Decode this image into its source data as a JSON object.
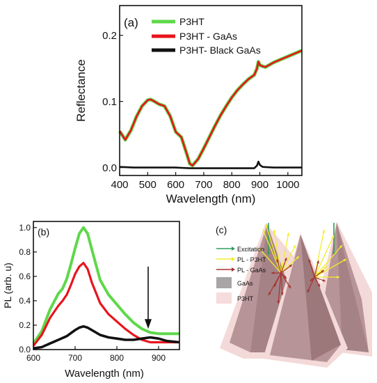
{
  "colors": {
    "p3ht": "#5ed84a",
    "p3ht_gaas": "#e8141c",
    "p3ht_black_gaas": "#111111",
    "excitation": "#2e9e5b",
    "pl_p3ht": "#f2ee2a",
    "pl_gaas": "#a8322e",
    "gaas_fill": "#a9a4a6",
    "p3ht_fill": "#f6dcdc",
    "cone_fill": "#b79497"
  },
  "chart_data": [
    {
      "type": "line",
      "panel_label": "(a)",
      "xlabel": "Wavelength (nm)",
      "ylabel": "Reflectance",
      "xlim": [
        400,
        1050
      ],
      "ylim": [
        -0.012,
        0.245
      ],
      "x_ticks": [
        400,
        500,
        600,
        700,
        800,
        900,
        1000
      ],
      "y_ticks": [
        0.0,
        0.1,
        0.2
      ],
      "x_tick_labels": [
        "400",
        "500",
        "600",
        "700",
        "800",
        "900",
        "1000"
      ],
      "y_tick_labels": [
        "0.0",
        "0.1",
        "0.2"
      ],
      "legend_position": "top-left",
      "series": [
        {
          "name": "P3HT",
          "x": [
            400,
            420,
            440,
            460,
            480,
            500,
            510,
            520,
            540,
            560,
            580,
            600,
            620,
            640,
            650,
            660,
            680,
            700,
            720,
            740,
            760,
            780,
            800,
            820,
            840,
            860,
            880,
            890,
            895,
            900,
            910,
            920,
            950,
            1000,
            1050
          ],
          "y": [
            0.055,
            0.042,
            0.056,
            0.077,
            0.093,
            0.102,
            0.103,
            0.101,
            0.096,
            0.093,
            0.078,
            0.054,
            0.046,
            0.02,
            0.006,
            0.003,
            0.013,
            0.029,
            0.046,
            0.063,
            0.079,
            0.093,
            0.106,
            0.117,
            0.126,
            0.134,
            0.14,
            0.15,
            0.16,
            0.155,
            0.153,
            0.152,
            0.159,
            0.168,
            0.177
          ]
        },
        {
          "name": "P3HT - GaAs",
          "x": [
            400,
            420,
            440,
            460,
            480,
            500,
            510,
            520,
            540,
            560,
            580,
            600,
            620,
            640,
            650,
            660,
            680,
            700,
            720,
            740,
            760,
            780,
            800,
            820,
            840,
            860,
            880,
            890,
            895,
            900,
            910,
            920,
            950,
            1000,
            1050
          ],
          "y": [
            0.055,
            0.042,
            0.056,
            0.077,
            0.093,
            0.102,
            0.103,
            0.101,
            0.096,
            0.093,
            0.078,
            0.054,
            0.046,
            0.02,
            0.006,
            0.003,
            0.013,
            0.029,
            0.046,
            0.063,
            0.079,
            0.093,
            0.106,
            0.117,
            0.126,
            0.134,
            0.14,
            0.15,
            0.16,
            0.155,
            0.153,
            0.152,
            0.159,
            0.168,
            0.177
          ]
        },
        {
          "name": "P3HT- Black GaAs",
          "x": [
            400,
            450,
            500,
            550,
            600,
            650,
            700,
            750,
            800,
            850,
            880,
            890,
            895,
            900,
            910,
            950,
            1000,
            1050
          ],
          "y": [
            0.001,
            0.0,
            0.0,
            0.0,
            0.0,
            -0.001,
            -0.001,
            -0.001,
            -0.001,
            -0.001,
            -0.001,
            0.003,
            0.009,
            0.004,
            0.001,
            0.0,
            0.0,
            0.0
          ]
        }
      ]
    },
    {
      "type": "line",
      "panel_label": "(b)",
      "xlabel": "Wavelength (nm)",
      "ylabel": "PL (arb. u)",
      "xlim": [
        600,
        950
      ],
      "ylim": [
        0.0,
        1.05
      ],
      "x_ticks": [
        600,
        700,
        800,
        900
      ],
      "y_ticks": [
        0.0,
        0.2,
        0.4,
        0.6,
        0.8,
        1.0
      ],
      "x_tick_labels": [
        "600",
        "700",
        "800",
        "900"
      ],
      "y_tick_labels": [
        "0.0",
        "0.2",
        "0.4",
        "0.6",
        "0.8",
        "1.0"
      ],
      "series": [
        {
          "name": "P3HT",
          "x": [
            600,
            620,
            640,
            660,
            670,
            680,
            690,
            700,
            710,
            720,
            730,
            740,
            760,
            780,
            800,
            820,
            840,
            860,
            880,
            900,
            920,
            950
          ],
          "y": [
            0.05,
            0.15,
            0.33,
            0.46,
            0.5,
            0.58,
            0.7,
            0.83,
            0.95,
            1.0,
            0.95,
            0.82,
            0.57,
            0.45,
            0.37,
            0.29,
            0.22,
            0.17,
            0.14,
            0.13,
            0.13,
            0.13
          ]
        },
        {
          "name": "P3HT - GaAs",
          "x": [
            600,
            620,
            640,
            660,
            670,
            680,
            690,
            700,
            710,
            720,
            730,
            740,
            760,
            780,
            800,
            820,
            840,
            860,
            880,
            900,
            920,
            950
          ],
          "y": [
            0.03,
            0.12,
            0.26,
            0.36,
            0.4,
            0.45,
            0.53,
            0.62,
            0.68,
            0.71,
            0.66,
            0.55,
            0.38,
            0.29,
            0.23,
            0.17,
            0.12,
            0.08,
            0.06,
            0.06,
            0.06,
            0.06
          ]
        },
        {
          "name": "P3HT- Black GaAs",
          "x": [
            600,
            620,
            640,
            660,
            680,
            700,
            710,
            720,
            730,
            740,
            760,
            780,
            800,
            820,
            840,
            860,
            880,
            900,
            920,
            950
          ],
          "y": [
            0.01,
            0.02,
            0.05,
            0.08,
            0.11,
            0.16,
            0.18,
            0.19,
            0.18,
            0.16,
            0.12,
            0.1,
            0.09,
            0.08,
            0.08,
            0.09,
            0.1,
            0.09,
            0.07,
            0.06
          ]
        }
      ],
      "arrow_at_x": 875
    }
  ],
  "diagram": {
    "panel_label": "(c)",
    "legend": [
      {
        "label": "Excitation",
        "type": "arrow",
        "color_key": "excitation"
      },
      {
        "label": "PL - P3HT",
        "type": "arrow",
        "color_key": "pl_p3ht"
      },
      {
        "label": "PL - GaAs",
        "type": "arrow",
        "color_key": "pl_gaas"
      },
      {
        "label": "GaAs",
        "type": "swatch",
        "color_key": "gaas_fill"
      },
      {
        "label": "P3HT",
        "type": "swatch",
        "color_key": "p3ht_fill"
      }
    ]
  }
}
